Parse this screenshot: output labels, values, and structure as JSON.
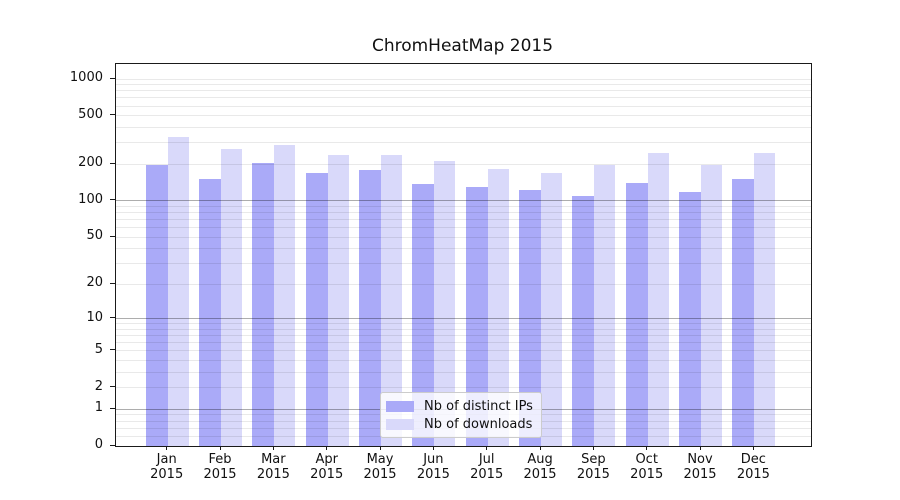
{
  "title": "ChromHeatMap 2015",
  "colors": {
    "ips_bar": "#aaaaf8",
    "downloads_bar": "#d9d9fa",
    "grid_minor": "rgba(0,0,0,0.085)",
    "grid_major": "rgba(0,0,0,0.32)",
    "spine": "#1a1a1a"
  },
  "chart_data": {
    "type": "bar",
    "title": "ChromHeatMap 2015",
    "categories": [
      "Jan",
      "Feb",
      "Mar",
      "Apr",
      "May",
      "Jun",
      "Jul",
      "Aug",
      "Sep",
      "Oct",
      "Nov",
      "Dec"
    ],
    "x_year": "2015",
    "series": [
      {
        "name": "Nb of distinct IPs",
        "color": "#aaaaf8",
        "values": [
          196,
          151,
          206,
          171,
          179,
          137,
          130,
          122,
          110,
          140,
          118,
          152
        ]
      },
      {
        "name": "Nb of downloads",
        "color": "#d9d9fa",
        "values": [
          337,
          266,
          288,
          238,
          237,
          212,
          182,
          171,
          196,
          249,
          196,
          249
        ]
      }
    ],
    "xlabel": "",
    "ylabel": "",
    "y_scale": "log1p",
    "y_ticks": [
      0,
      1,
      2,
      5,
      10,
      20,
      50,
      100,
      200,
      500,
      1000
    ],
    "y_minor_gridlines": [
      0.2,
      0.4,
      0.6,
      0.8,
      2,
      3,
      4,
      5,
      6,
      7,
      8,
      9,
      20,
      30,
      40,
      50,
      60,
      70,
      80,
      90,
      200,
      300,
      400,
      500,
      600,
      700,
      800,
      900,
      1000
    ],
    "y_major_gridlines": [
      1,
      10,
      100
    ],
    "ylim": [
      0,
      1327
    ],
    "grid": true,
    "legend_position": "lower center"
  },
  "legend": {
    "items": [
      {
        "label": "Nb of distinct IPs"
      },
      {
        "label": "Nb of downloads"
      }
    ]
  }
}
